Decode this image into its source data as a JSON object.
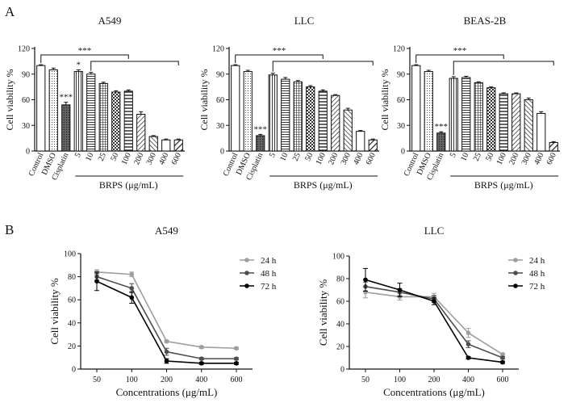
{
  "panel_labels": [
    "A",
    "B"
  ],
  "colors": {
    "axis": "#111111",
    "bar_fill": "#ffffff",
    "bar_dark": "#555555",
    "line_24h": "#9e9e9e",
    "line_48h": "#4d4d4d",
    "line_72h": "#000000"
  },
  "chart_data": [
    {
      "type": "bar",
      "title": "A549",
      "ylabel": "Cell viability %",
      "xlabel": "BRPS (μg/mL)",
      "ylim": [
        0,
        120
      ],
      "yticks": [
        0,
        30,
        60,
        90,
        120
      ],
      "categories": [
        "Control",
        "DMSO",
        "Cisplatin",
        "5",
        "10",
        "25",
        "50",
        "100",
        "200",
        "300",
        "400",
        "600"
      ],
      "values": [
        100,
        95,
        54,
        93,
        90,
        79,
        69,
        70,
        43,
        17,
        13,
        13
      ],
      "errors": [
        1,
        2,
        3,
        2,
        2,
        1.5,
        1.5,
        1.5,
        3,
        1,
        1,
        1
      ],
      "annotations": [
        {
          "text": "***",
          "target": "Cisplatin"
        },
        {
          "text": "*",
          "target": "5"
        },
        {
          "text": "***",
          "from": "Control",
          "to": "100"
        },
        {
          "text": "",
          "from": "10",
          "to": "600"
        }
      ]
    },
    {
      "type": "bar",
      "title": "LLC",
      "ylabel": "Cell viability %",
      "xlabel": "BRPS (μg/mL)",
      "ylim": [
        0,
        120
      ],
      "yticks": [
        0,
        30,
        60,
        90,
        120
      ],
      "categories": [
        "Control",
        "DMSO",
        "Cisplatin",
        "5",
        "10",
        "25",
        "50",
        "100",
        "200",
        "300",
        "400",
        "600"
      ],
      "values": [
        100,
        93,
        18,
        89,
        84,
        81,
        75,
        70,
        65,
        48,
        23,
        13
      ],
      "errors": [
        1,
        1.5,
        1.5,
        2,
        2,
        1.5,
        1.5,
        1.5,
        1,
        2,
        1,
        1
      ],
      "annotations": [
        {
          "text": "***",
          "target": "Cisplatin"
        },
        {
          "text": "***",
          "from": "Control",
          "to": "100"
        },
        {
          "text": "",
          "from": "5",
          "to": "600"
        }
      ]
    },
    {
      "type": "bar",
      "title": "BEAS-2B",
      "ylabel": "Cell viability %",
      "xlabel": "BRPS (μg/mL)",
      "ylim": [
        0,
        120
      ],
      "yticks": [
        0,
        30,
        60,
        90,
        120
      ],
      "categories": [
        "Control",
        "DMSO",
        "Cisplatin",
        "5",
        "10",
        "25",
        "50",
        "100",
        "200",
        "300",
        "400",
        "600"
      ],
      "values": [
        100,
        93,
        21,
        85,
        86,
        80,
        74,
        67,
        67,
        60,
        44,
        10
      ],
      "errors": [
        1,
        1.5,
        1.5,
        2,
        1.5,
        1,
        1,
        1,
        1,
        2,
        2,
        1
      ],
      "annotations": [
        {
          "text": "***",
          "target": "Cisplatin"
        },
        {
          "text": "***",
          "from": "Control",
          "to": "100"
        },
        {
          "text": "",
          "from": "5",
          "to": "600"
        }
      ]
    },
    {
      "type": "line",
      "title": "A549",
      "ylabel": "Cell viability %",
      "xlabel": "Concentrations  (μg/mL)",
      "ylim": [
        0,
        100
      ],
      "yticks": [
        0,
        20,
        40,
        60,
        80,
        100
      ],
      "x": [
        "50",
        "100",
        "200",
        "400",
        "600"
      ],
      "series": [
        {
          "name": "24 h",
          "values": [
            84,
            82,
            24,
            19,
            18
          ],
          "errors": [
            2,
            2,
            1,
            1,
            1
          ]
        },
        {
          "name": "48 h",
          "values": [
            80,
            70,
            15,
            9,
            9
          ],
          "errors": [
            3,
            4,
            3,
            1,
            1
          ]
        },
        {
          "name": "72 h",
          "values": [
            76,
            62,
            7,
            5,
            5
          ],
          "errors": [
            8,
            5,
            2,
            1,
            1
          ]
        }
      ]
    },
    {
      "type": "line",
      "title": "LLC",
      "ylabel": "Cell viability %",
      "xlabel": "Concentrations  (μg/mL)",
      "ylim": [
        0,
        100
      ],
      "yticks": [
        0,
        20,
        40,
        60,
        80,
        100
      ],
      "x": [
        "50",
        "100",
        "200",
        "400",
        "600"
      ],
      "series": [
        {
          "name": "24 h",
          "values": [
            68,
            64,
            64,
            32,
            13
          ],
          "errors": [
            5,
            3,
            3,
            4,
            1
          ]
        },
        {
          "name": "48 h",
          "values": [
            73,
            68,
            62,
            22,
            10
          ],
          "errors": [
            4,
            3,
            3,
            3,
            1
          ]
        },
        {
          "name": "72 h",
          "values": [
            79,
            70,
            60,
            10,
            6
          ],
          "errors": [
            10,
            6,
            3,
            1,
            1
          ]
        }
      ]
    }
  ]
}
